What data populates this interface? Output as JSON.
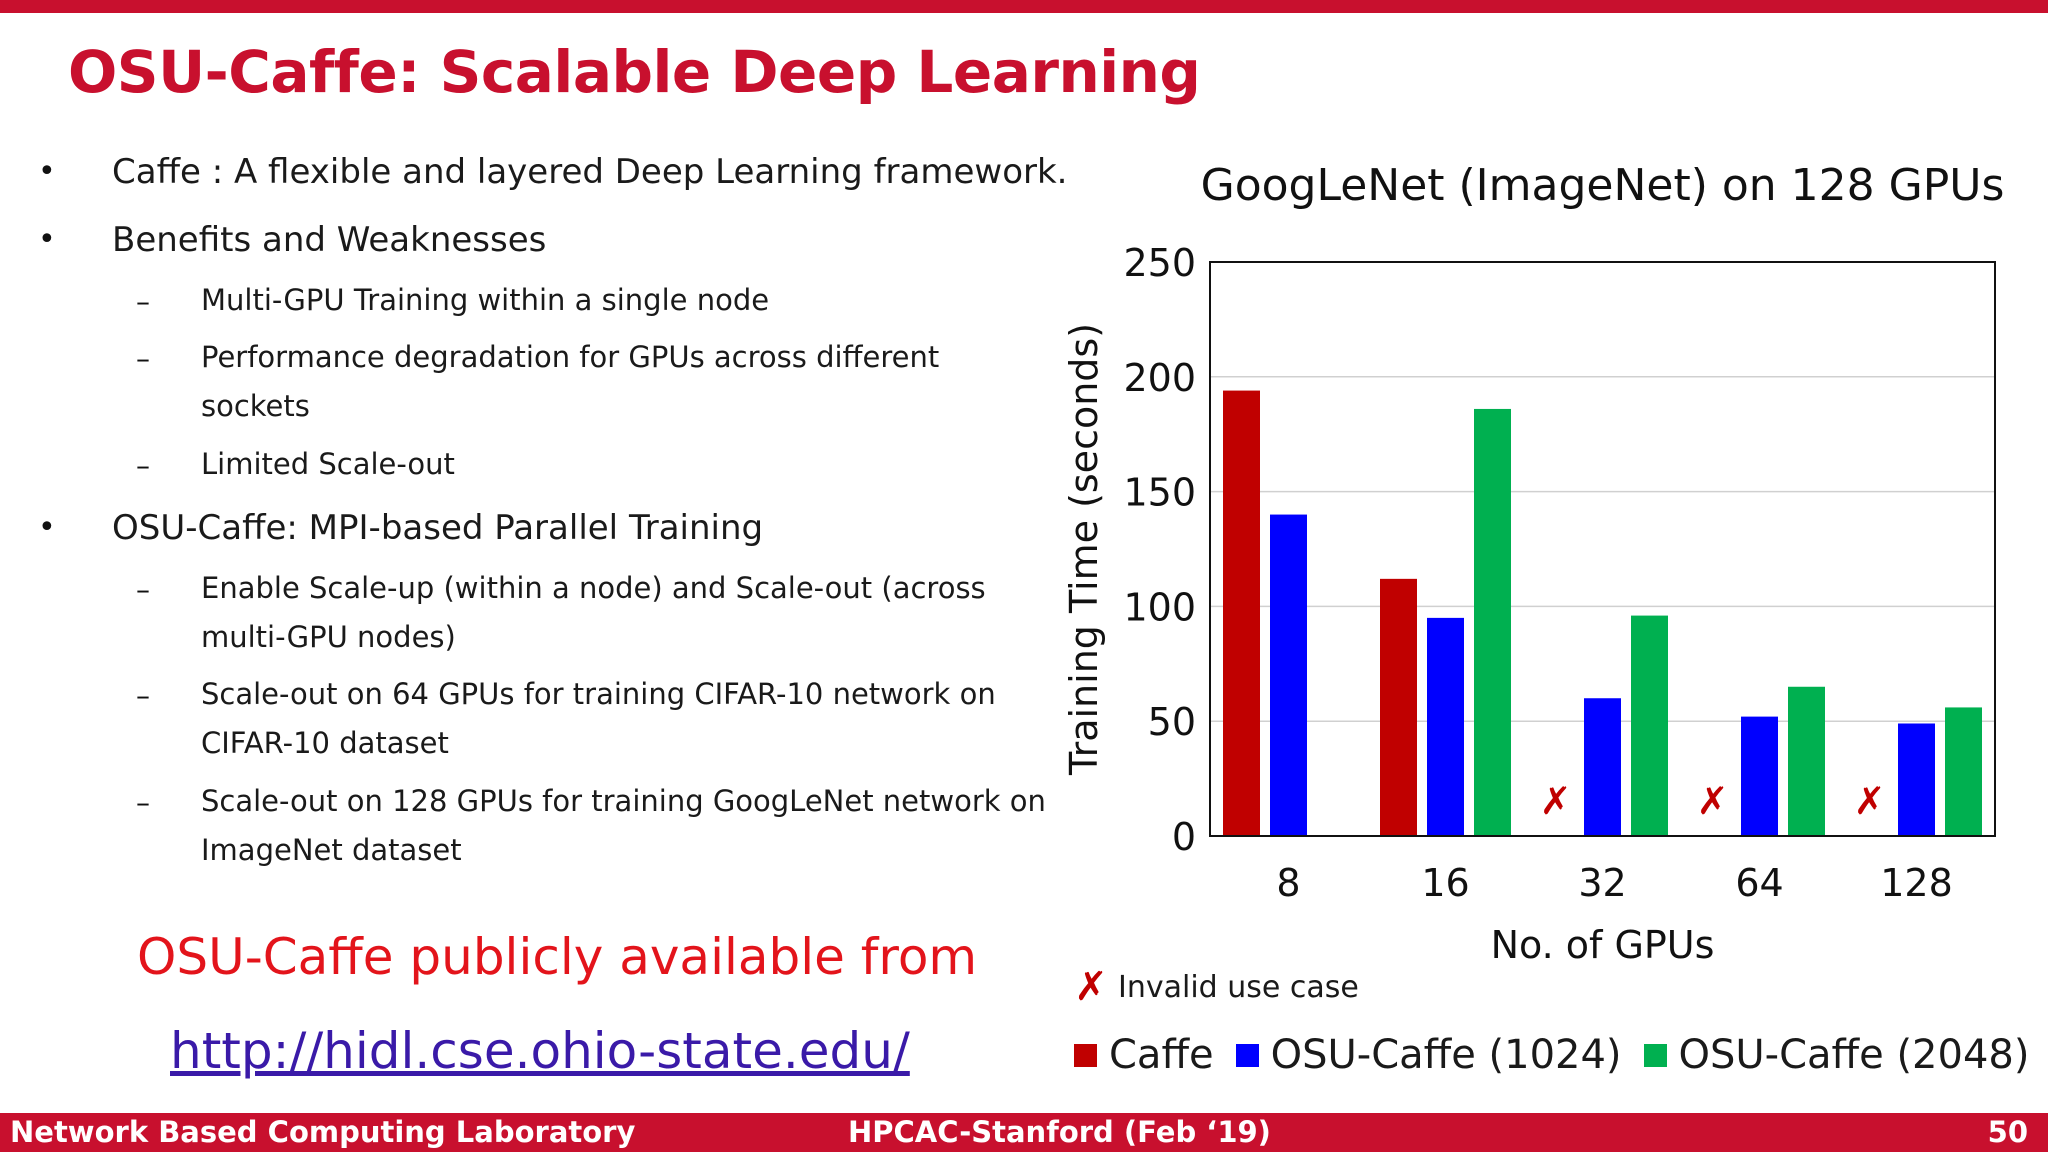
{
  "slide": {
    "title": "OSU-Caffe: Scalable Deep Learning"
  },
  "bullets": {
    "b1": "Caffe : A flexible and layered Deep Learning framework.",
    "b2": "Benefits and Weaknesses",
    "b2_sub1": "Multi-GPU Training within a single node",
    "b2_sub2_line1": "Performance degradation for GPUs across different",
    "b2_sub2_line2": "sockets",
    "b2_sub3": "Limited Scale-out",
    "b3": "OSU-Caffe: MPI-based Parallel Training",
    "b3_sub1_line1": "Enable Scale-up (within a node) and Scale-out (across",
    "b3_sub1_line2": "multi-GPU nodes)",
    "b3_sub2_line1": "Scale-out on 64 GPUs for training CIFAR-10 network on",
    "b3_sub2_line2": "CIFAR-10 dataset",
    "b3_sub3_line1": "Scale-out on 128 GPUs for training GoogLeNet network on",
    "b3_sub3_line2": "ImageNet dataset",
    "bullet_glyph": "•",
    "dash_glyph": "–"
  },
  "availability": {
    "text": "OSU-Caffe publicly available from",
    "url": "http://hidl.cse.ohio-state.edu/"
  },
  "chart_data": {
    "type": "bar",
    "title": "GoogLeNet (ImageNet) on 128 GPUs",
    "xlabel": "No. of GPUs",
    "ylabel": "Training Time (seconds)",
    "categories": [
      "8",
      "16",
      "32",
      "64",
      "128"
    ],
    "ylim": [
      0,
      250
    ],
    "yticks": [
      0,
      50,
      100,
      150,
      200,
      250
    ],
    "grid": true,
    "series": [
      {
        "name": "Caffe",
        "color": "#c00000",
        "values": [
          194,
          112,
          null,
          null,
          null
        ]
      },
      {
        "name": "OSU-Caffe (1024)",
        "color": "#0000ff",
        "values": [
          140,
          95,
          60,
          52,
          49
        ]
      },
      {
        "name": "OSU-Caffe (2048)",
        "color": "#00b050",
        "values": [
          null,
          186,
          96,
          65,
          56
        ]
      }
    ],
    "invalid_marker": {
      "label": "Invalid use case",
      "glyph": "✗",
      "categories": [
        "32",
        "64",
        "128"
      ],
      "series": "Caffe"
    },
    "legend_position": "bottom"
  },
  "footer": {
    "left": "Network Based Computing Laboratory",
    "center": "HPCAC-Stanford (Feb ‘19)",
    "page": "50"
  }
}
